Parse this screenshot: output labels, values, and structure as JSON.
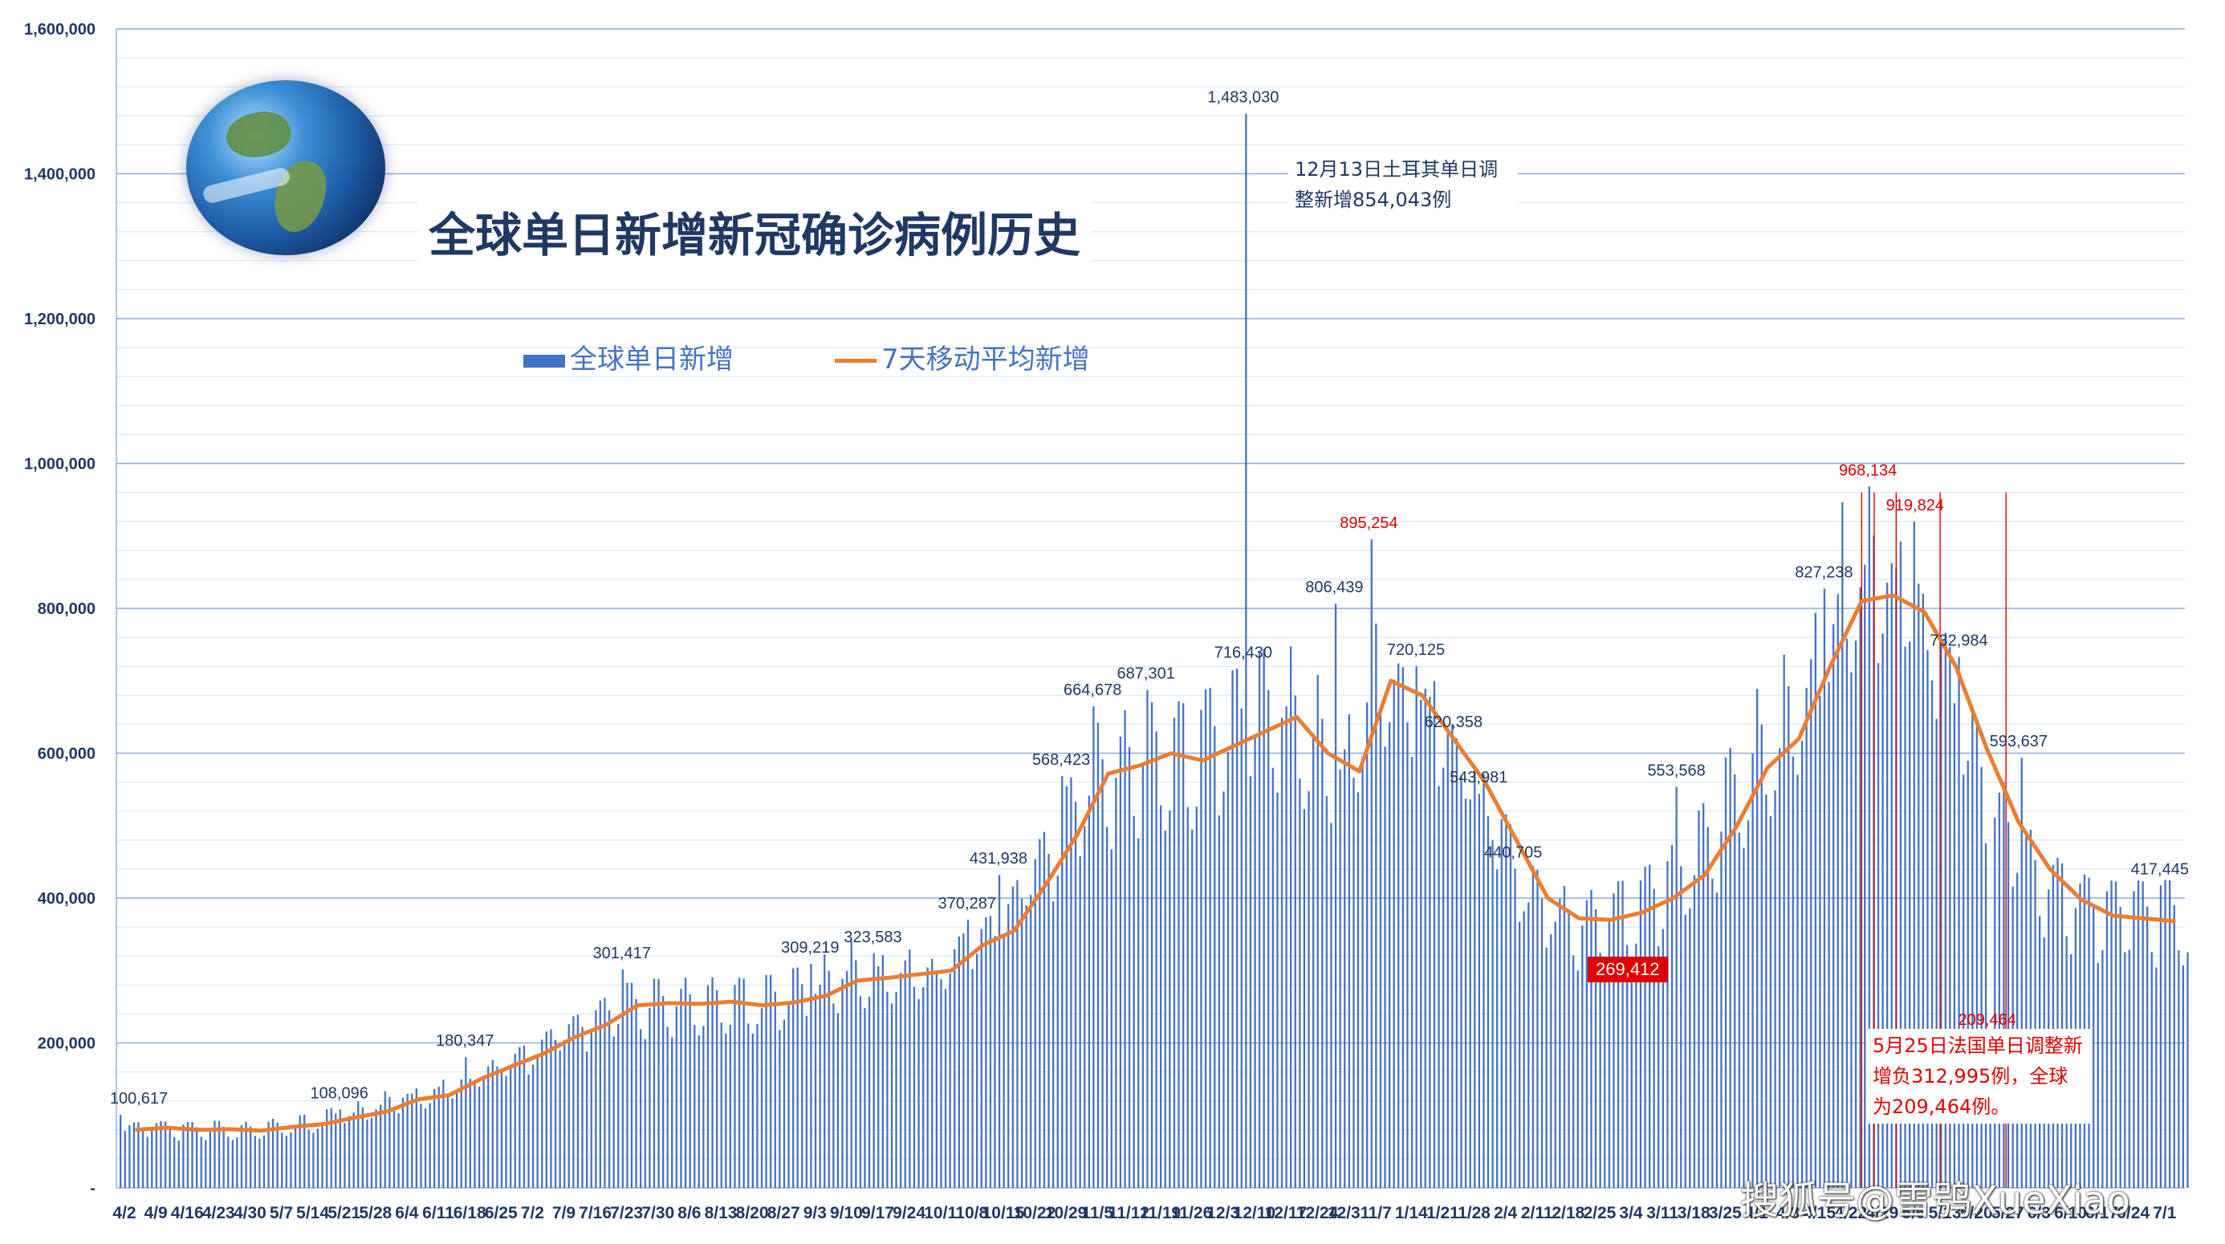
{
  "title": "全球单日新增新冠确诊病例历史",
  "legend": {
    "bars": "全球单日新增",
    "line": "7天移动平均新增"
  },
  "notes": {
    "turkey": "12月13日土耳其单日调整新增854,043例",
    "france": "5月25日法国单日调整新增负312,995例，全球为209,464例。"
  },
  "badge": "269,412",
  "watermark": "搜狐号@雪鸮XueXiao",
  "icons": {
    "globe": "earth-globe-icon"
  },
  "colors": {
    "bars": "#4472c4",
    "line": "#ed7d31",
    "axis_text": "#1f3864",
    "highlight": "#e00000"
  },
  "chart_data": {
    "type": "bar",
    "title": "全球单日新增新冠确诊病例历史",
    "ylim": [
      0,
      1600000
    ],
    "yticks": [
      0,
      200000,
      400000,
      600000,
      800000,
      1000000,
      1200000,
      1400000,
      1600000
    ],
    "ytick_labels": [
      "-",
      "200,000",
      "400,000",
      "600,000",
      "800,000",
      "1,000,000",
      "1,200,000",
      "1,400,000",
      "1,600,000"
    ],
    "grid": true,
    "legend_position": "top-left",
    "xtick_labels": [
      "4/2",
      "4/9",
      "4/16",
      "4/23",
      "4/30",
      "5/7",
      "5/14",
      "5/21",
      "5/28",
      "6/4",
      "6/11",
      "6/18",
      "6/25",
      "7/2",
      "7/9",
      "7/16",
      "7/23",
      "7/30",
      "8/6",
      "8/13",
      "8/20",
      "8/27",
      "9/3",
      "9/10",
      "9/17",
      "9/24",
      "10/1",
      "10/8",
      "10/15",
      "10/22",
      "10/29",
      "11/5",
      "11/12",
      "11/19",
      "11/26",
      "12/3",
      "12/10",
      "12/17",
      "12/24",
      "12/31",
      "1/7",
      "1/14",
      "1/21",
      "1/28",
      "2/4",
      "2/11",
      "2/18",
      "2/25",
      "3/4",
      "3/11",
      "3/18",
      "3/25",
      "4/1",
      "4/8",
      "4/15",
      "4/22",
      "4/29",
      "5/6",
      "5/13",
      "5/20",
      "5/27",
      "6/3",
      "6/10",
      "6/17",
      "6/24",
      "7/1"
    ],
    "series": [
      {
        "name": "全球单日新增",
        "type": "bar",
        "weekly_average": [
          80000,
          83000,
          80000,
          81000,
          79000,
          84000,
          88000,
          97000,
          105000,
          122000,
          128000,
          150000,
          168000,
          185000,
          208000,
          225000,
          252000,
          255000,
          254000,
          257000,
          252000,
          256000,
          265000,
          286000,
          290000,
          295000,
          300000,
          335000,
          355000,
          418000,
          487000,
          572000,
          583000,
          600000,
          590000,
          610000,
          630000,
          650000,
          600000,
          575000,
          700000,
          680000,
          620000,
          560000,
          480000,
          400000,
          372000,
          370000,
          380000,
          400000,
          432000,
          498000,
          580000,
          620000,
          720000,
          810000,
          818000,
          795000,
          720000,
          605000,
          505000,
          440000,
          398000,
          376000,
          372000,
          368000
        ]
      },
      {
        "name": "7天移动平均新增",
        "type": "line",
        "values": [
          80000,
          83000,
          80000,
          81000,
          79000,
          84000,
          88000,
          97000,
          105000,
          122000,
          128000,
          150000,
          168000,
          185000,
          208000,
          225000,
          252000,
          255000,
          254000,
          257000,
          252000,
          256000,
          265000,
          286000,
          290000,
          295000,
          300000,
          335000,
          355000,
          418000,
          487000,
          572000,
          583000,
          600000,
          590000,
          610000,
          630000,
          650000,
          600000,
          575000,
          700000,
          680000,
          620000,
          560000,
          480000,
          400000,
          372000,
          370000,
          380000,
          400000,
          432000,
          498000,
          580000,
          620000,
          720000,
          810000,
          818000,
          795000,
          720000,
          605000,
          505000,
          440000,
          398000,
          376000,
          372000,
          368000
        ]
      }
    ],
    "annotations": [
      {
        "label": "100,617",
        "value": 100617,
        "week": 0,
        "color": "blue"
      },
      {
        "label": "108,096",
        "value": 108096,
        "week": 7,
        "color": "blue"
      },
      {
        "label": "180,347",
        "value": 180347,
        "week": 11,
        "color": "blue"
      },
      {
        "label": "301,417",
        "value": 301417,
        "week": 16,
        "color": "blue"
      },
      {
        "label": "309,219",
        "value": 309219,
        "week": 22,
        "color": "blue"
      },
      {
        "label": "323,583",
        "value": 323583,
        "week": 24,
        "color": "blue"
      },
      {
        "label": "370,287",
        "value": 370287,
        "week": 27,
        "color": "blue"
      },
      {
        "label": "431,938",
        "value": 431938,
        "week": 28,
        "color": "blue"
      },
      {
        "label": "568,423",
        "value": 568423,
        "week": 30,
        "color": "blue"
      },
      {
        "label": "664,678",
        "value": 664678,
        "week": 31,
        "color": "blue"
      },
      {
        "label": "687,301",
        "value": 687301,
        "week": 32.7,
        "color": "blue"
      },
      {
        "label": "716,430",
        "value": 716430,
        "week": 35.8,
        "color": "blue"
      },
      {
        "label": "1,483,030",
        "value": 1483030,
        "week": 35.8,
        "color": "blue"
      },
      {
        "label": "806,439",
        "value": 806439,
        "week": 38.7,
        "color": "blue"
      },
      {
        "label": "895,254",
        "value": 895254,
        "week": 39.8,
        "color": "red"
      },
      {
        "label": "720,125",
        "value": 720125,
        "week": 41.3,
        "color": "blue"
      },
      {
        "label": "620,358",
        "value": 620358,
        "week": 42.5,
        "color": "blue"
      },
      {
        "label": "543,981",
        "value": 543981,
        "week": 43.3,
        "color": "blue"
      },
      {
        "label": "440,705",
        "value": 440705,
        "week": 44.4,
        "color": "blue"
      },
      {
        "label": "269,412",
        "value": 269412,
        "week": 46.8,
        "color": "red-badge"
      },
      {
        "label": "553,568",
        "value": 553568,
        "week": 49.6,
        "color": "blue"
      },
      {
        "label": "827,238",
        "value": 827238,
        "week": 54.3,
        "color": "blue"
      },
      {
        "label": "968,134",
        "value": 968134,
        "week": 55.7,
        "color": "red"
      },
      {
        "label": "919,824",
        "value": 919824,
        "week": 57.2,
        "color": "red"
      },
      {
        "label": "732,984",
        "value": 732984,
        "week": 58.6,
        "color": "blue"
      },
      {
        "label": "209,464",
        "value": 209464,
        "week": 59.5,
        "color": "red"
      },
      {
        "label": "593,637",
        "value": 593637,
        "week": 60.5,
        "color": "blue"
      },
      {
        "label": "417,445",
        "value": 417445,
        "week": 65,
        "color": "blue"
      }
    ]
  }
}
